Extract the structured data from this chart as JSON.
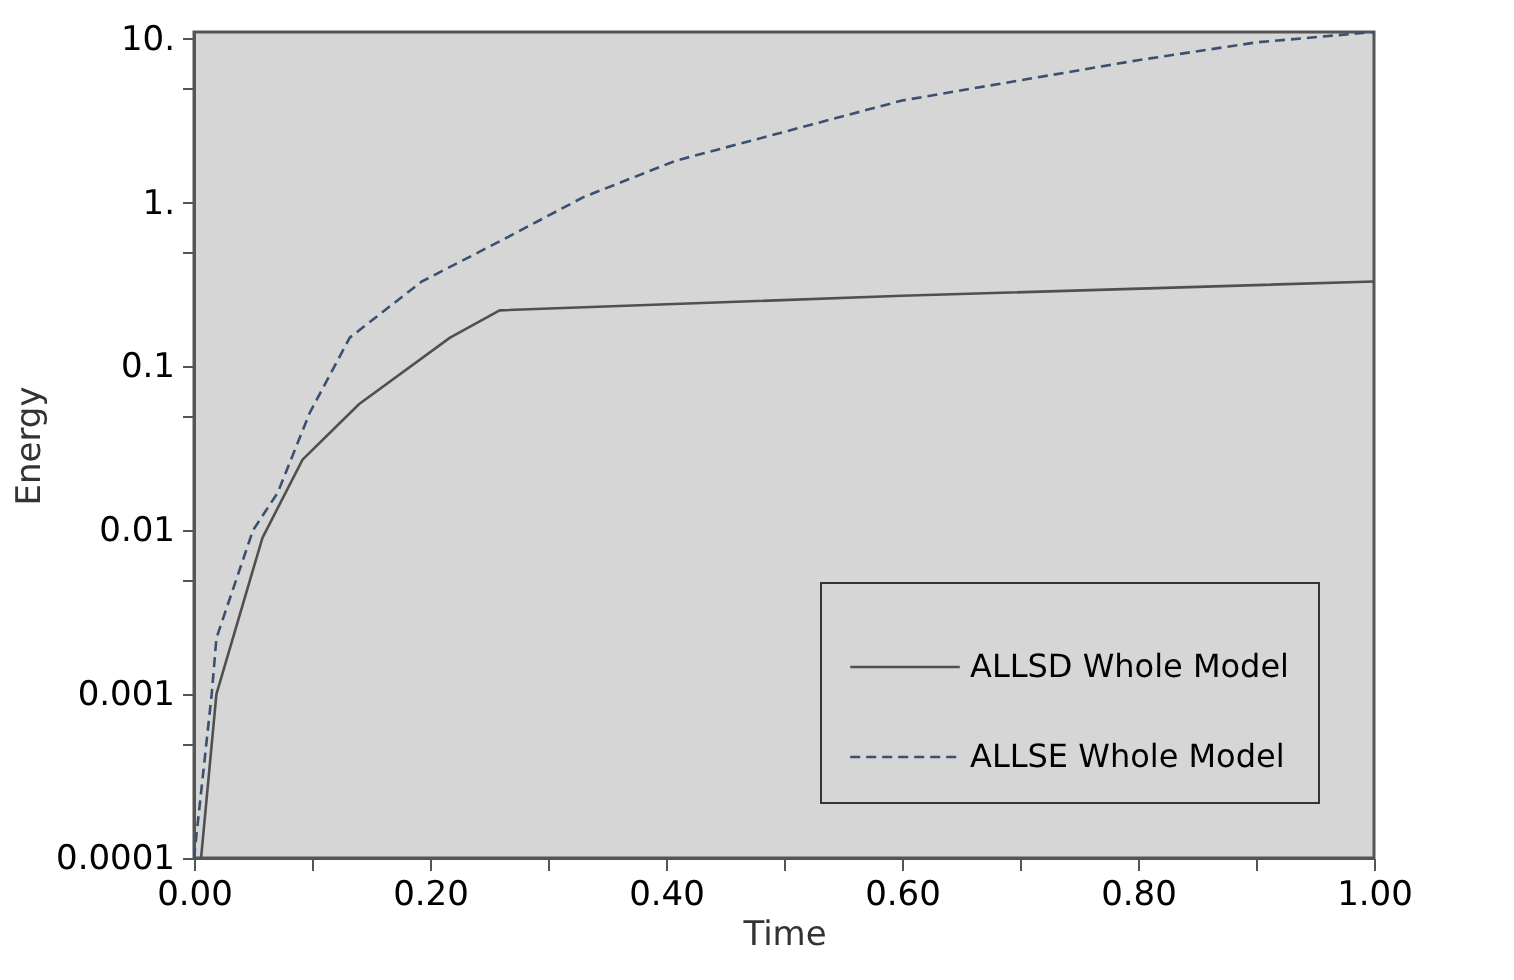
{
  "chart_data": {
    "type": "line",
    "xlabel": "Time",
    "ylabel": "Energy",
    "log": "y",
    "xlim": [
      0,
      1
    ],
    "ylim": [
      0.0001,
      11
    ],
    "xticks": [
      {
        "value": 0,
        "label": "0.00"
      },
      {
        "value": 0.1,
        "label": null
      },
      {
        "value": 0.2,
        "label": "0.20"
      },
      {
        "value": 0.3,
        "label": null
      },
      {
        "value": 0.4,
        "label": "0.40"
      },
      {
        "value": 0.5,
        "label": null
      },
      {
        "value": 0.6,
        "label": "0.60"
      },
      {
        "value": 0.7,
        "label": null
      },
      {
        "value": 0.8,
        "label": "0.80"
      },
      {
        "value": 0.9,
        "label": null
      },
      {
        "value": 1,
        "label": "1.00"
      }
    ],
    "yticks": [
      0.0001,
      {
        "value": 0.0005,
        "label": null
      },
      0.001,
      {
        "value": 0.005,
        "label": null
      },
      0.01,
      {
        "value": 0.05,
        "label": null
      },
      0.1,
      {
        "value": 0.5,
        "label": null
      },
      {
        "value": 1,
        "label": "1."
      },
      {
        "value": 5,
        "label": null
      },
      {
        "value": 10,
        "label": "10."
      }
    ],
    "grid": false,
    "legend": "bottom right",
    "series": [
      {
        "name": "ALLSD Whole Model",
        "color": "#505050",
        "line_style": "solid",
        "x": [
          0.006,
          0.019,
          0.058,
          0.092,
          0.14,
          0.217,
          0.259,
          0.6,
          1.0
        ],
        "values": [
          0.0001,
          0.001,
          0.009,
          0.027,
          0.059,
          0.15,
          0.22,
          0.27,
          0.33
        ]
      },
      {
        "name": "ALLSE Whole Model",
        "color": "#3b5070",
        "line_style": "dashed",
        "x": [
          0.0,
          0.015,
          0.019,
          0.05,
          0.071,
          0.098,
          0.132,
          0.193,
          0.261,
          0.33,
          0.408,
          0.5,
          0.6,
          0.8,
          0.9,
          1.0
        ],
        "values": [
          0.0001,
          0.001,
          0.0022,
          0.01,
          0.017,
          0.052,
          0.15,
          0.33,
          0.59,
          1.08,
          1.8,
          2.7,
          4.2,
          7.4,
          9.5,
          11
        ]
      }
    ]
  }
}
